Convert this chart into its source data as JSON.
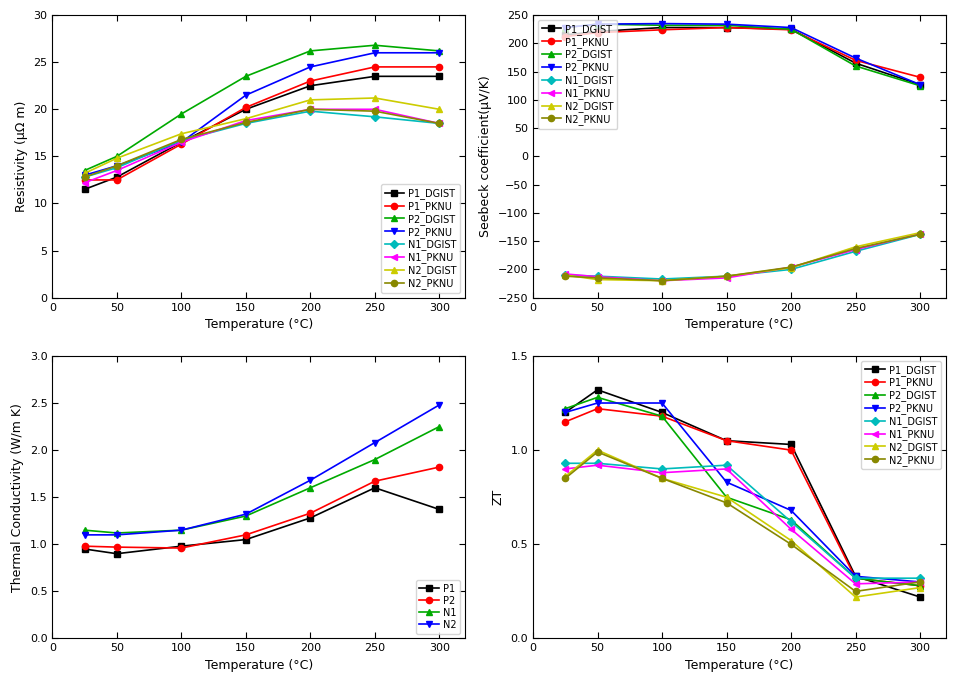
{
  "temp": [
    25,
    50,
    100,
    150,
    200,
    250,
    300
  ],
  "resistivity": {
    "P1_DGIST": [
      11.5,
      12.8,
      16.5,
      20.0,
      22.5,
      23.5,
      23.5
    ],
    "P1_PKNU": [
      12.5,
      12.5,
      16.3,
      20.2,
      23.0,
      24.5,
      24.5
    ],
    "P2_DGIST": [
      13.5,
      15.0,
      19.5,
      23.5,
      26.2,
      26.8,
      26.2
    ],
    "P2_PKNU": [
      13.0,
      14.0,
      16.5,
      21.5,
      24.5,
      26.0,
      26.0
    ],
    "N1_DGIST": [
      12.8,
      13.8,
      16.7,
      18.5,
      19.8,
      19.2,
      18.5
    ],
    "N1_PKNU": [
      12.2,
      13.5,
      16.5,
      18.8,
      20.0,
      20.0,
      18.5
    ],
    "N2_DGIST": [
      13.2,
      14.8,
      17.4,
      19.0,
      21.0,
      21.2,
      20.0
    ],
    "N2_PKNU": [
      12.8,
      14.0,
      16.8,
      18.6,
      20.0,
      19.8,
      18.5
    ]
  },
  "seebeck": {
    "P1_DGIST": [
      215,
      221,
      228,
      228,
      225,
      165,
      127
    ],
    "P1_PKNU": [
      212,
      219,
      224,
      228,
      224,
      170,
      140
    ],
    "P2_DGIST": [
      228,
      234,
      232,
      232,
      225,
      160,
      125
    ],
    "P2_PKNU": [
      228,
      234,
      235,
      234,
      228,
      174,
      127
    ],
    "N1_DGIST": [
      -210,
      -212,
      -217,
      -212,
      -200,
      -168,
      -138
    ],
    "N1_PKNU": [
      -208,
      -213,
      -220,
      -215,
      -196,
      -165,
      -137
    ],
    "N2_DGIST": [
      -210,
      -218,
      -220,
      -212,
      -197,
      -160,
      -135
    ],
    "N2_PKNU": [
      -212,
      -215,
      -220,
      -212,
      -196,
      -163,
      -138
    ]
  },
  "thermal": {
    "P1": [
      0.95,
      0.9,
      0.98,
      1.05,
      1.28,
      1.6,
      1.37
    ],
    "P2": [
      0.98,
      0.97,
      0.96,
      1.1,
      1.33,
      1.67,
      1.82
    ],
    "N1": [
      1.15,
      1.12,
      1.15,
      1.3,
      1.6,
      1.9,
      2.25
    ],
    "N2": [
      1.1,
      1.1,
      1.15,
      1.32,
      1.68,
      2.08,
      2.48
    ]
  },
  "zt": {
    "P1_DGIST": [
      1.2,
      1.32,
      1.2,
      1.05,
      1.03,
      0.33,
      0.22
    ],
    "P1_PKNU": [
      1.15,
      1.22,
      1.18,
      1.05,
      1.0,
      0.32,
      0.28
    ],
    "P2_DGIST": [
      1.22,
      1.28,
      1.18,
      0.75,
      0.63,
      0.32,
      0.28
    ],
    "P2_PKNU": [
      1.2,
      1.25,
      1.25,
      0.83,
      0.68,
      0.33,
      0.3
    ],
    "N1_DGIST": [
      0.93,
      0.93,
      0.9,
      0.92,
      0.62,
      0.32,
      0.32
    ],
    "N1_PKNU": [
      0.9,
      0.92,
      0.88,
      0.9,
      0.58,
      0.29,
      0.3
    ],
    "N2_DGIST": [
      0.86,
      1.0,
      0.85,
      0.75,
      0.52,
      0.22,
      0.27
    ],
    "N2_PKNU": [
      0.85,
      0.99,
      0.85,
      0.72,
      0.5,
      0.25,
      0.3
    ]
  },
  "colors": {
    "P1_DGIST": "#000000",
    "P1_PKNU": "#ff0000",
    "P2_DGIST": "#00aa00",
    "P2_PKNU": "#0000ff",
    "N1_DGIST": "#00bbbb",
    "N1_PKNU": "#ff00ff",
    "N2_DGIST": "#cccc00",
    "N2_PKNU": "#888800"
  },
  "tc_colors": {
    "P1": "#000000",
    "P2": "#ff0000",
    "N1": "#00aa00",
    "N2": "#0000ff"
  }
}
